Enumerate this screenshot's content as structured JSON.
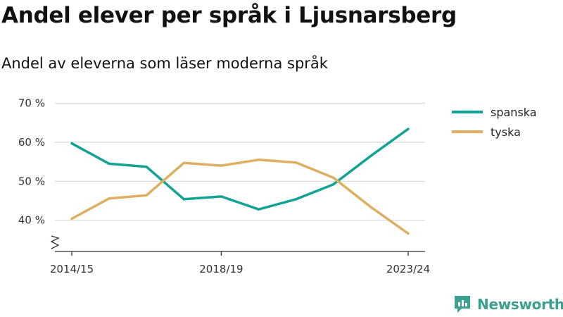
{
  "title": "Andel elever per språk i Ljusnarsberg",
  "subtitle": "Andel av eleverna som läser moderna språk",
  "brand": {
    "name": "Newsworthy",
    "icon": "newsworthy-logo-icon",
    "color": "#3d9f8f"
  },
  "chart_data": {
    "type": "line",
    "x": [
      "2014/15",
      "2015/16",
      "2016/17",
      "2017/18",
      "2018/19",
      "2019/20",
      "2020/21",
      "2021/22",
      "2022/23",
      "2023/24"
    ],
    "x_tick_labels": [
      "2014/15",
      "2018/19",
      "2023/24"
    ],
    "y_ticks": [
      40,
      50,
      60,
      70
    ],
    "y_tick_labels": [
      "40 %",
      "50 %",
      "60 %",
      "70 %"
    ],
    "ylim": [
      32,
      70
    ],
    "axis_break": true,
    "grid": true,
    "legend_position": "right",
    "series": [
      {
        "name": "spanska",
        "color": "#13a394",
        "values": [
          59.7,
          54.5,
          53.7,
          45.4,
          46.1,
          42.8,
          45.4,
          49.2,
          56.5,
          63.4
        ]
      },
      {
        "name": "tyska",
        "color": "#dcb060",
        "values": [
          40.4,
          45.6,
          46.4,
          54.7,
          54.0,
          55.5,
          54.8,
          50.9,
          43.4,
          36.6
        ]
      }
    ]
  }
}
